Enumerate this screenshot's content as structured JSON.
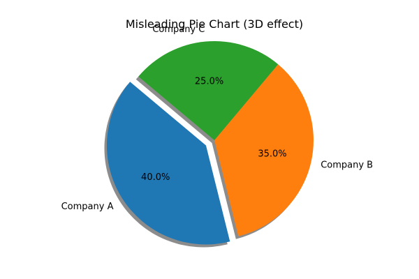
{
  "chart_data": {
    "type": "pie",
    "title": "Misleading Pie Chart (3D effect)",
    "categories": [
      "Company A",
      "Company B",
      "Company C"
    ],
    "values": [
      40,
      35,
      25
    ],
    "percent_labels": [
      "40.0%",
      "35.0%",
      "25.0%"
    ],
    "colors": [
      "#1f77b4",
      "#ff7f0e",
      "#2ca02c"
    ],
    "explode": [
      0.1,
      0,
      0
    ],
    "start_angle_deg": 140,
    "shadow": true
  }
}
